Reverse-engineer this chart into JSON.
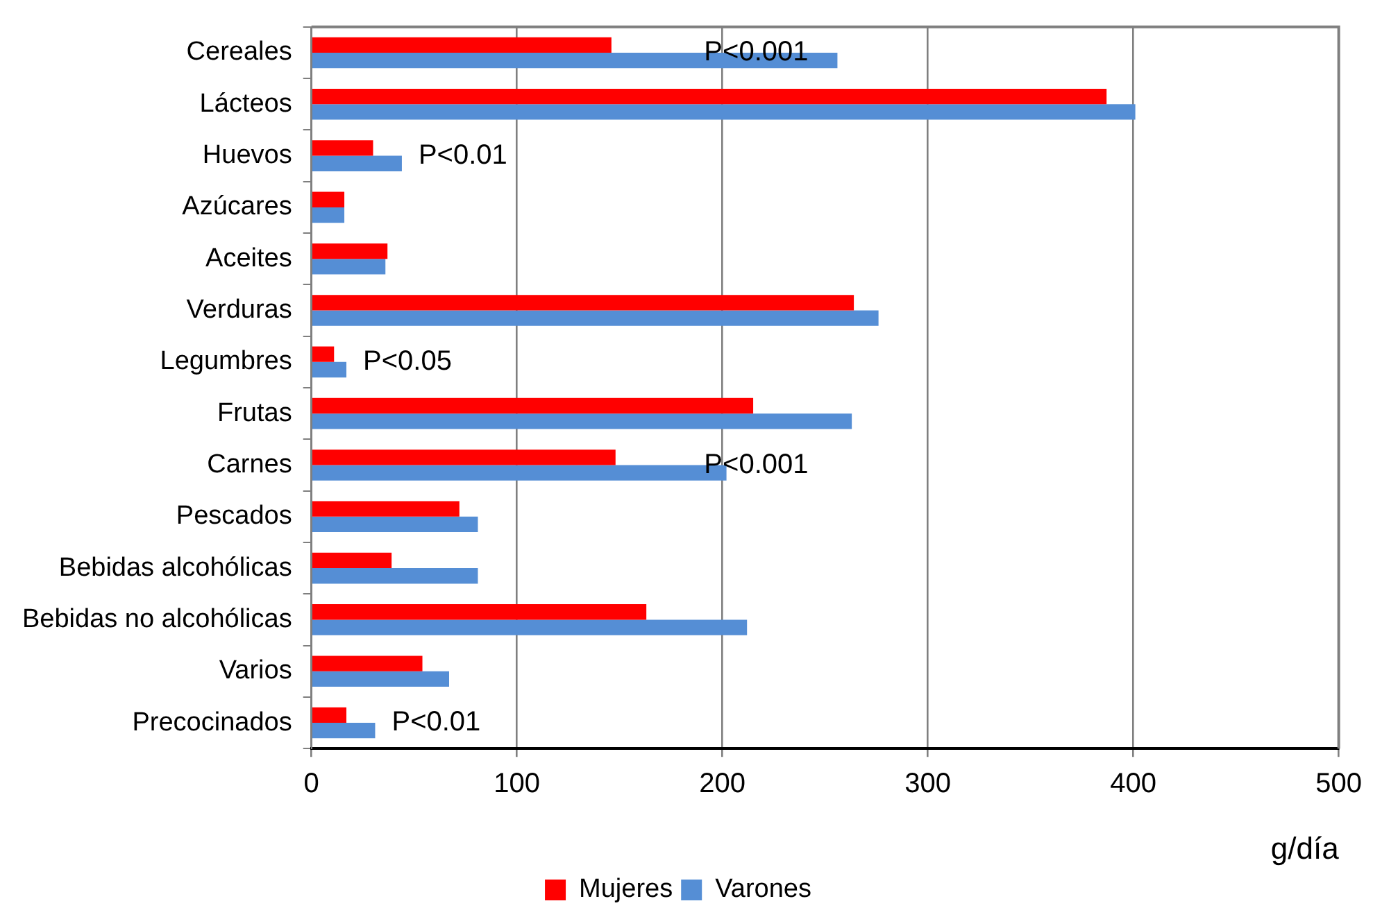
{
  "chart_data": {
    "type": "bar",
    "orientation": "horizontal",
    "xlabel": "g/día",
    "categories": [
      "Cereales",
      "Lácteos",
      "Huevos",
      "Azúcares",
      "Aceites",
      "Verduras",
      "Legumbres",
      "Frutas",
      "Carnes",
      "Pescados",
      "Bebidas alcohólicas",
      "Bebidas no alcohólicas",
      "Varios",
      "Precocinados"
    ],
    "series": [
      {
        "name": "Mujeres",
        "color": "#ff0000",
        "values": [
          146,
          387,
          30,
          16,
          37,
          264,
          11,
          215,
          148,
          72,
          39,
          163,
          54,
          17
        ]
      },
      {
        "name": "Varones",
        "color": "#558ed5",
        "values": [
          256,
          401,
          44,
          16,
          36,
          276,
          17,
          263,
          202,
          81,
          81,
          212,
          67,
          31
        ]
      }
    ],
    "xlim": [
      0,
      500
    ],
    "xticks": [
      0,
      100,
      200,
      300,
      400,
      500
    ],
    "grid": "x",
    "legend": "bottom",
    "annotations": [
      {
        "text": "P<0.001",
        "x": 183,
        "y": "Cereales"
      },
      {
        "text": "P<0.01",
        "x": 44,
        "y": "Huevos"
      },
      {
        "text": "P<0.05",
        "x": 17,
        "y": "Legumbres"
      },
      {
        "text": "P<0.001",
        "x": 183,
        "y": "Carnes"
      },
      {
        "text": "P<0.01",
        "x": 31,
        "y": "Precocinados"
      }
    ]
  }
}
